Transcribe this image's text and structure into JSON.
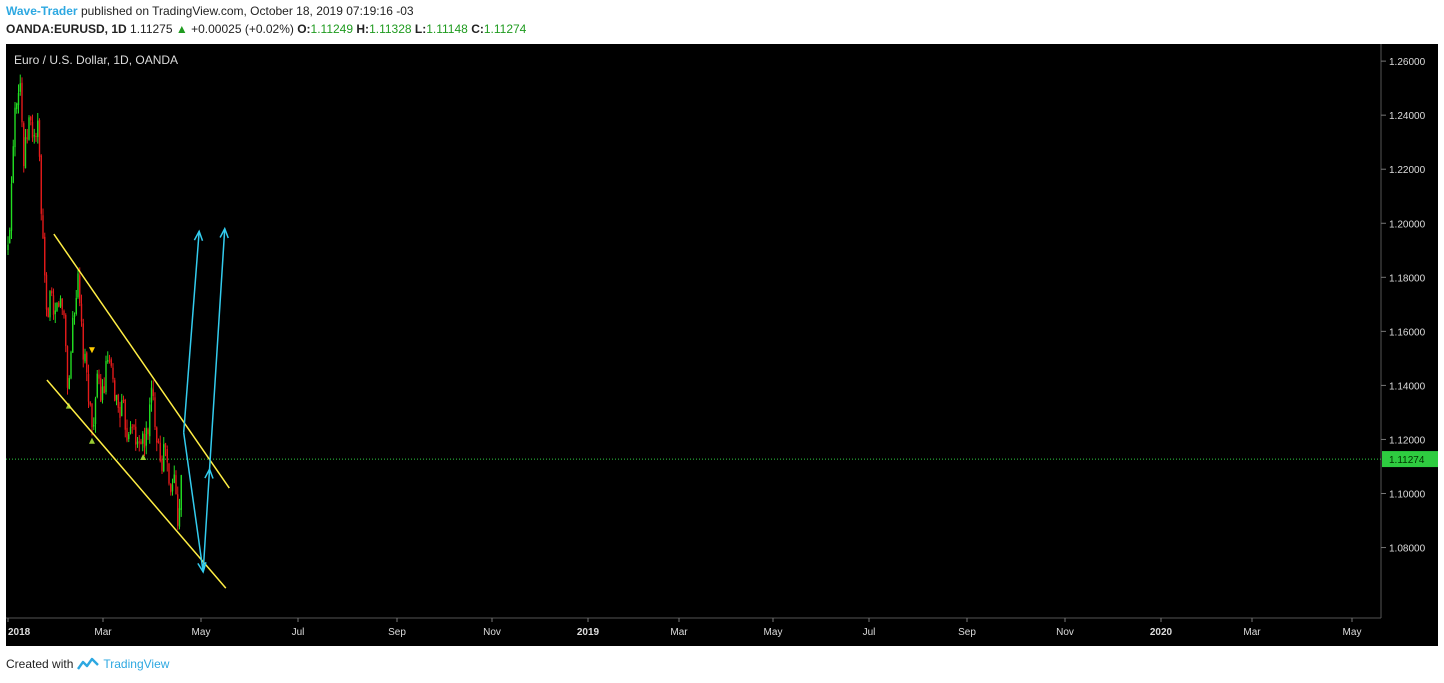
{
  "header": {
    "author": "Wave-Trader",
    "published_text": "published on TradingView.com, October 18, 2019 07:19:16 -03",
    "symbol": "OANDA:EURUSD, 1D",
    "last_price": "1.11275",
    "change_arrow": "▲",
    "change": "+0.00025 (+0.02%)",
    "open_label": "O:",
    "open": "1.11249",
    "high_label": "H:",
    "high": "1.11328",
    "low_label": "L:",
    "low": "1.11148",
    "close_label": "C:",
    "close": "1.11274"
  },
  "footer": {
    "created_with": "Created with",
    "brand": "TradingView",
    "logo_icon": "tradingview-logo-icon"
  },
  "chart_data": {
    "type": "candlestick",
    "title": "Euro / U.S. Dollar, 1D, OANDA",
    "ylim": [
      1.058,
      1.268
    ],
    "price_ticks": [
      "1.26000",
      "1.24000",
      "1.22000",
      "1.20000",
      "1.18000",
      "1.16000",
      "1.14000",
      "1.12000",
      "1.10000",
      "1.08000"
    ],
    "current_price": 1.11274,
    "current_price_label": "1.11274",
    "x_ticks": [
      "2018",
      "Mar",
      "May",
      "Jul",
      "Sep",
      "Nov",
      "2019",
      "Mar",
      "May",
      "Jul",
      "Sep",
      "Nov",
      "2020",
      "Mar",
      "May"
    ],
    "bull_color": "#22dd22",
    "bear_color": "#e41a1a",
    "price_path": [
      [
        "2018-01-01",
        1.19
      ],
      [
        "2018-01-10",
        1.205
      ],
      [
        "2018-01-25",
        1.243
      ],
      [
        "2018-02-15",
        1.255
      ],
      [
        "2018-03-01",
        1.222
      ],
      [
        "2018-03-20",
        1.238
      ],
      [
        "2018-04-10",
        1.232
      ],
      [
        "2018-04-25",
        1.235
      ],
      [
        "2018-05-05",
        1.205
      ],
      [
        "2018-05-25",
        1.165
      ],
      [
        "2018-06-10",
        1.175
      ],
      [
        "2018-06-20",
        1.162
      ],
      [
        "2018-07-10",
        1.172
      ],
      [
        "2018-08-01",
        1.165
      ],
      [
        "2018-08-15",
        1.135
      ],
      [
        "2018-09-01",
        1.165
      ],
      [
        "2018-09-20",
        1.178
      ],
      [
        "2018-10-10",
        1.152
      ],
      [
        "2018-10-30",
        1.138
      ],
      [
        "2018-11-12",
        1.124
      ],
      [
        "2018-12-01",
        1.14
      ],
      [
        "2018-12-25",
        1.137
      ],
      [
        "2019-01-10",
        1.15
      ],
      [
        "2019-01-25",
        1.142
      ],
      [
        "2019-02-15",
        1.133
      ],
      [
        "2019-03-10",
        1.13
      ],
      [
        "2019-03-25",
        1.122
      ],
      [
        "2019-04-10",
        1.13
      ],
      [
        "2019-04-25",
        1.117
      ],
      [
        "2019-05-10",
        1.122
      ],
      [
        "2019-05-25",
        1.117
      ],
      [
        "2019-06-10",
        1.125
      ],
      [
        "2019-06-25",
        1.138
      ],
      [
        "2019-07-10",
        1.125
      ],
      [
        "2019-08-01",
        1.112
      ],
      [
        "2019-08-15",
        1.118
      ],
      [
        "2019-09-01",
        1.097
      ],
      [
        "2019-09-15",
        1.108
      ],
      [
        "2019-09-30",
        1.092
      ],
      [
        "2019-10-10",
        1.1
      ],
      [
        "2019-10-18",
        1.113
      ]
    ],
    "markers": [
      {
        "date": "2018-08-17",
        "price": 1.1325,
        "dir": "up",
        "color": "#9acd32"
      },
      {
        "date": "2018-11-12",
        "price": 1.1195,
        "dir": "up",
        "color": "#9acd32"
      },
      {
        "date": "2018-11-12",
        "price": 1.153,
        "dir": "down",
        "color": "#ffcc00"
      },
      {
        "date": "2019-05-23",
        "price": 1.1135,
        "dir": "up",
        "color": "#9acd32"
      }
    ],
    "channel_lines": [
      {
        "color": "#ffee44",
        "points": [
          [
            "2018-06-22",
            1.196
          ],
          [
            "2020-04-10",
            1.102
          ]
        ]
      },
      {
        "color": "#ffee44",
        "points": [
          [
            "2018-05-27",
            1.142
          ],
          [
            "2020-03-28",
            1.065
          ]
        ]
      }
    ],
    "projection_arrows": [
      {
        "color": "#33ccee",
        "points": [
          [
            "2019-10-22",
            1.1225
          ],
          [
            "2019-12-19",
            1.197
          ]
        ]
      },
      {
        "color": "#33ccee",
        "points": [
          [
            "2019-10-22",
            1.1225
          ],
          [
            "2020-01-03",
            1.071
          ],
          [
            "2020-01-27",
            1.109
          ],
          [
            "2020-03-24",
            1.198
          ]
        ]
      }
    ]
  }
}
